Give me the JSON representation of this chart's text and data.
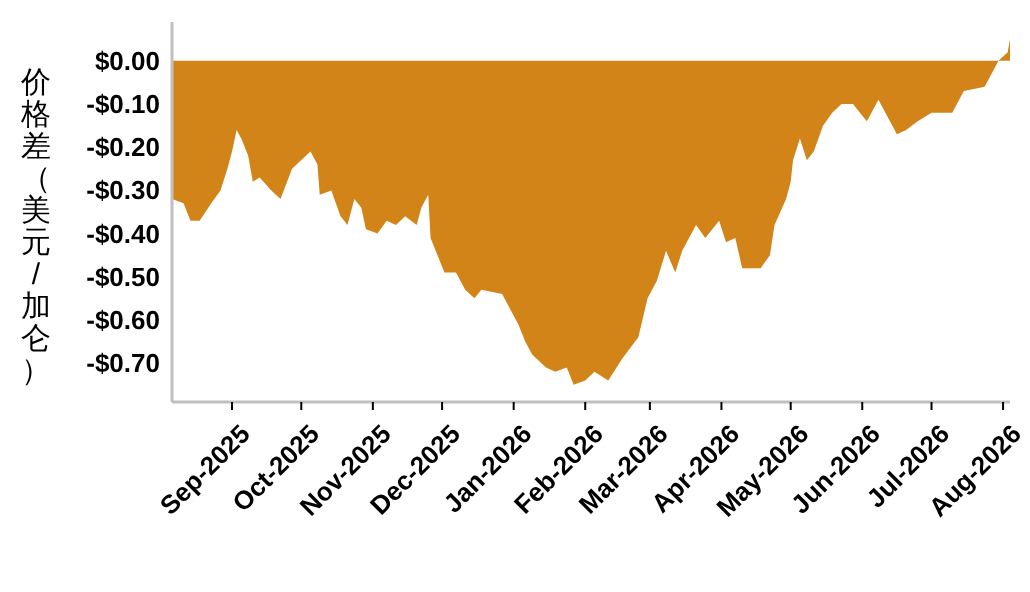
{
  "chart_data": {
    "type": "area",
    "ylabel": "价格差（美元/加仑）",
    "color": "#d38418",
    "x": [
      "2025-08-06",
      "2025-08-11",
      "2025-08-14",
      "2025-08-18",
      "2025-08-23",
      "2025-08-27",
      "2025-08-30",
      "2025-09-01",
      "2025-09-03",
      "2025-09-05",
      "2025-09-08",
      "2025-09-10",
      "2025-09-13",
      "2025-09-18",
      "2025-09-22",
      "2025-09-27",
      "2025-10-05",
      "2025-10-08",
      "2025-10-09",
      "2025-10-14",
      "2025-10-18",
      "2025-10-21",
      "2025-10-24",
      "2025-10-27",
      "2025-10-29",
      "2025-11-03",
      "2025-11-07",
      "2025-11-11",
      "2025-11-15",
      "2025-11-20",
      "2025-11-22",
      "2025-11-25",
      "2025-11-26",
      "2025-12-02",
      "2025-12-07",
      "2025-12-11",
      "2025-12-15",
      "2025-12-18",
      "2025-12-27",
      "2026-01-01",
      "2026-01-03",
      "2026-01-06",
      "2026-01-09",
      "2026-01-15",
      "2026-01-19",
      "2026-01-24",
      "2026-01-27",
      "2026-02-01",
      "2026-02-05",
      "2026-02-11",
      "2026-02-17",
      "2026-02-24",
      "2026-02-28",
      "2026-03-04",
      "2026-03-08",
      "2026-03-12",
      "2026-03-15",
      "2026-03-21",
      "2026-03-25",
      "2026-03-31",
      "2026-04-03",
      "2026-04-07",
      "2026-04-10",
      "2026-04-18",
      "2026-04-22",
      "2026-04-24",
      "2026-04-29",
      "2026-05-01",
      "2026-05-02",
      "2026-05-05",
      "2026-05-08",
      "2026-05-11",
      "2026-05-15",
      "2026-05-19",
      "2026-05-23",
      "2026-05-28",
      "2026-05-31",
      "2026-06-03",
      "2026-06-08",
      "2026-06-13",
      "2026-06-16",
      "2026-06-20",
      "2026-06-25",
      "2026-07-01",
      "2026-07-10",
      "2026-07-15",
      "2026-07-24",
      "2026-07-28",
      "2026-07-30",
      "2026-08-01",
      "2026-08-03",
      "2026-08-04"
    ],
    "values": [
      -0.32,
      -0.33,
      -0.37,
      -0.37,
      -0.33,
      -0.3,
      -0.25,
      -0.21,
      -0.16,
      -0.18,
      -0.22,
      -0.28,
      -0.27,
      -0.3,
      -0.32,
      -0.25,
      -0.21,
      -0.24,
      -0.31,
      -0.3,
      -0.36,
      -0.38,
      -0.32,
      -0.34,
      -0.39,
      -0.4,
      -0.37,
      -0.38,
      -0.36,
      -0.38,
      -0.34,
      -0.31,
      -0.41,
      -0.49,
      -0.49,
      -0.53,
      -0.55,
      -0.53,
      -0.54,
      -0.59,
      -0.61,
      -0.65,
      -0.68,
      -0.71,
      -0.72,
      -0.71,
      -0.75,
      -0.74,
      -0.72,
      -0.74,
      -0.69,
      -0.64,
      -0.55,
      -0.51,
      -0.44,
      -0.49,
      -0.44,
      -0.38,
      -0.41,
      -0.37,
      -0.42,
      -0.41,
      -0.48,
      -0.48,
      -0.45,
      -0.38,
      -0.32,
      -0.28,
      -0.23,
      -0.18,
      -0.23,
      -0.21,
      -0.15,
      -0.12,
      -0.1,
      -0.1,
      -0.12,
      -0.14,
      -0.09,
      -0.14,
      -0.17,
      -0.16,
      -0.14,
      -0.12,
      -0.12,
      -0.07,
      -0.06,
      -0.02,
      0.0,
      0.01,
      0.02,
      0.05
    ],
    "xlim": [
      "2025-08-06",
      "2026-08-04"
    ],
    "ylim": [
      -0.79,
      0.09
    ],
    "xticks": [
      {
        "value": "2025-09-01",
        "label": "Sep-2025"
      },
      {
        "value": "2025-10-01",
        "label": "Oct-2025"
      },
      {
        "value": "2025-11-01",
        "label": "Nov-2025"
      },
      {
        "value": "2025-12-01",
        "label": "Dec-2025"
      },
      {
        "value": "2026-01-01",
        "label": "Jan-2026"
      },
      {
        "value": "2026-02-01",
        "label": "Feb-2026"
      },
      {
        "value": "2026-03-01",
        "label": "Mar-2026"
      },
      {
        "value": "2026-04-01",
        "label": "Apr-2026"
      },
      {
        "value": "2026-05-01",
        "label": "May-2026"
      },
      {
        "value": "2026-06-01",
        "label": "Jun-2026"
      },
      {
        "value": "2026-07-01",
        "label": "Jul-2026"
      },
      {
        "value": "2026-08-01",
        "label": "Aug-2026"
      }
    ],
    "yticks": [
      {
        "value": 0,
        "label": "$0.00"
      },
      {
        "value": -0.1,
        "label": "-$0.10"
      },
      {
        "value": -0.2,
        "label": "-$0.20"
      },
      {
        "value": -0.3,
        "label": "-$0.30"
      },
      {
        "value": -0.4,
        "label": "-$0.40"
      },
      {
        "value": -0.5,
        "label": "-$0.50"
      },
      {
        "value": -0.6,
        "label": "-$0.60"
      },
      {
        "value": -0.7,
        "label": "-$0.70"
      }
    ]
  }
}
